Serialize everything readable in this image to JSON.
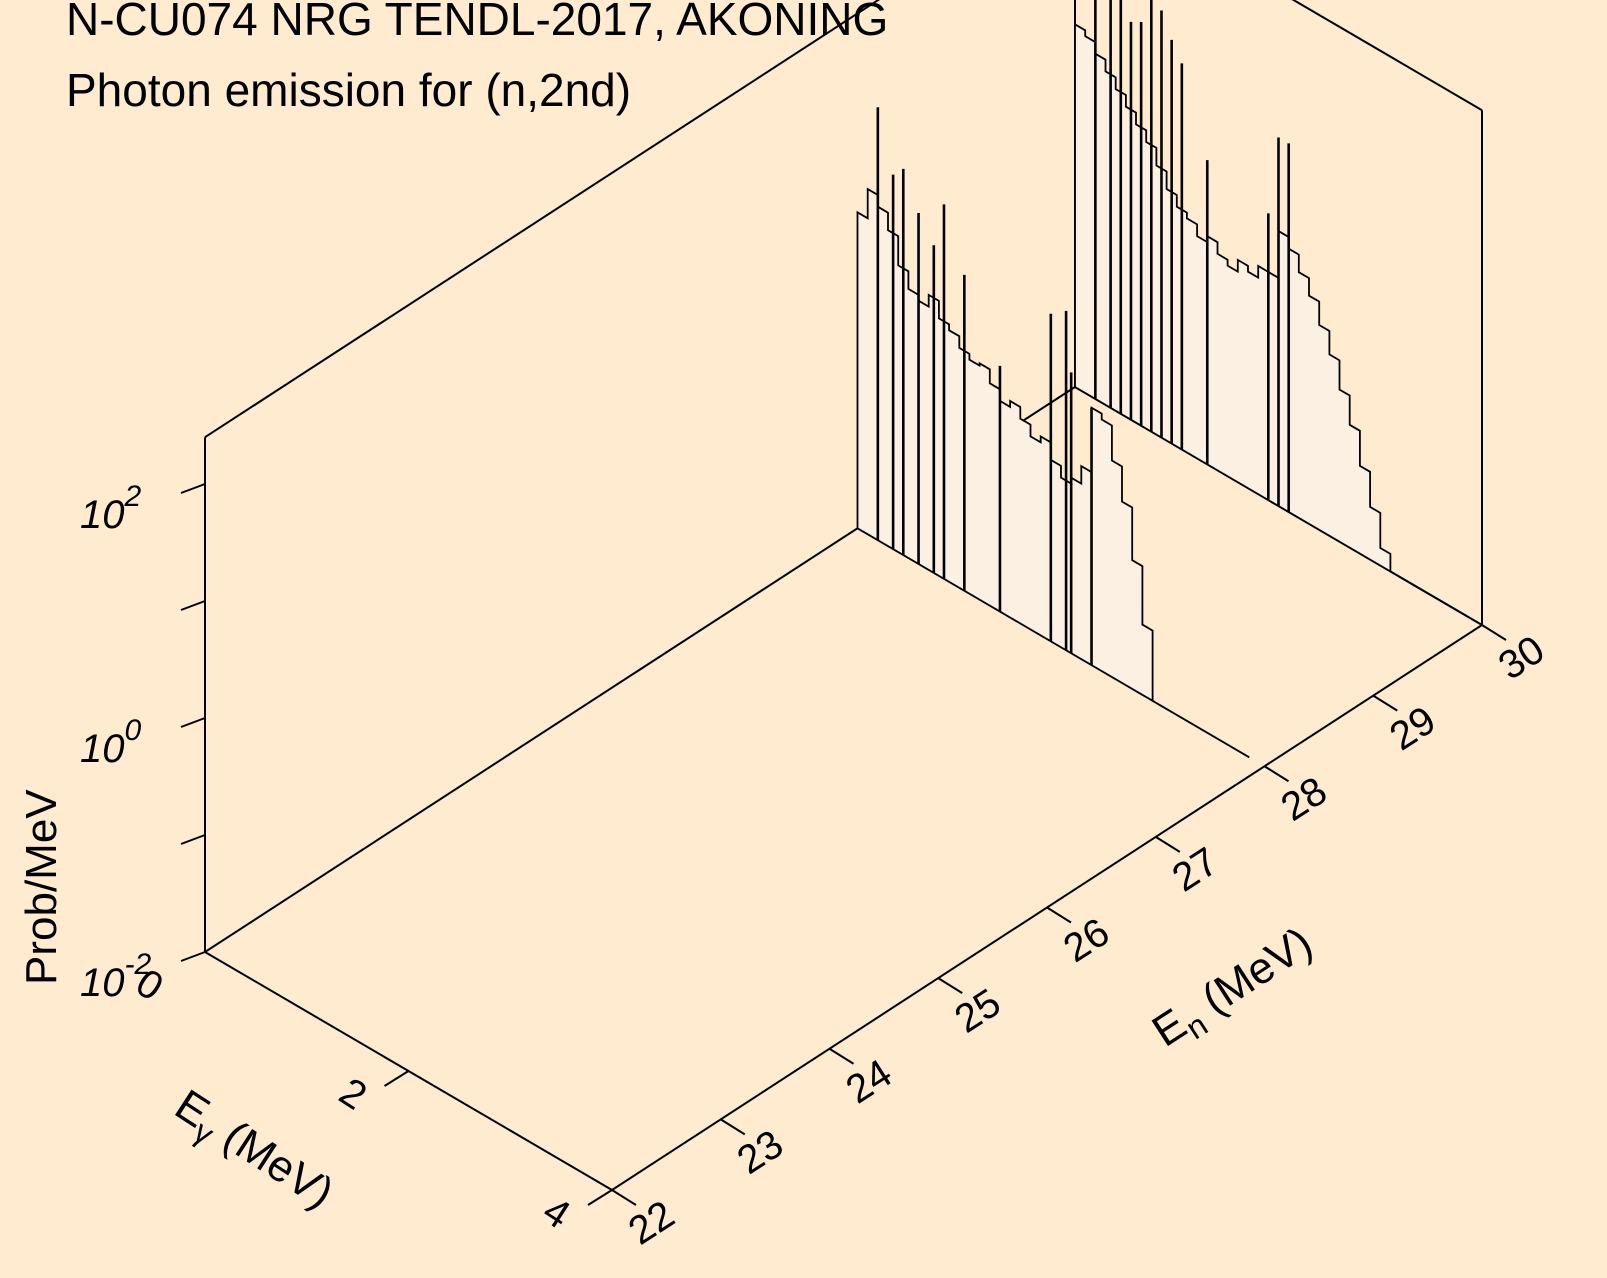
{
  "title": {
    "line1": "N-CU074 NRG TENDL-2017, AKONING",
    "line2": "Photon emission for (n,2nd)"
  },
  "colors": {
    "background": "#FEEBD0",
    "spectrum_fill": "#FBF0E2",
    "line": "#000000"
  },
  "chart_data": {
    "type": "area",
    "projection": "3d",
    "z_scale": "log",
    "xlabel": {
      "base": "E",
      "sub": "n",
      "unit": " (MeV)"
    },
    "ylabel": {
      "base": "E",
      "sub": "γ",
      "unit": " (MeV)"
    },
    "zlabel": "Prob/MeV",
    "xlim": [
      22,
      30
    ],
    "ylim": [
      0,
      4
    ],
    "zlim_exponent": [
      -2,
      2.4
    ],
    "x_ticks": [
      "22",
      "23",
      "24",
      "25",
      "26",
      "27",
      "28",
      "29",
      "30"
    ],
    "y_ticks": [
      "0",
      "2",
      "4"
    ],
    "z_ticks": [
      {
        "base": "10",
        "exp": "-2"
      },
      {
        "base": "10",
        "exp": "0"
      },
      {
        "base": "10",
        "exp": "2"
      }
    ],
    "z_minor_tick_exponents": [
      -1,
      1
    ],
    "series": [
      {
        "en": 28,
        "continuum": [
          [
            0.0,
            0.7
          ],
          [
            0.1,
            0.95
          ],
          [
            0.2,
            0.85
          ],
          [
            0.3,
            0.7
          ],
          [
            0.4,
            0.45
          ],
          [
            0.5,
            0.3
          ],
          [
            0.6,
            0.25
          ],
          [
            0.7,
            0.35
          ],
          [
            0.8,
            0.2
          ],
          [
            0.9,
            0.15
          ],
          [
            1.0,
            0.05
          ],
          [
            1.1,
            0.0
          ],
          [
            1.2,
            0.02
          ],
          [
            1.3,
            -0.1
          ],
          [
            1.4,
            -0.2
          ],
          [
            1.5,
            -0.15
          ],
          [
            1.6,
            -0.25
          ],
          [
            1.7,
            -0.35
          ],
          [
            1.8,
            -0.3
          ],
          [
            1.9,
            -0.45
          ],
          [
            2.0,
            -0.55
          ],
          [
            2.1,
            -0.5
          ],
          [
            2.2,
            -0.35
          ],
          [
            2.3,
            0.2
          ],
          [
            2.4,
            0.15
          ],
          [
            2.5,
            -0.15
          ],
          [
            2.6,
            -0.45
          ],
          [
            2.7,
            -0.9
          ],
          [
            2.8,
            -1.4
          ],
          [
            2.9,
            -2.0
          ],
          [
            3.0,
            -2.0
          ]
        ],
        "lines": [
          [
            0.2,
            1.7
          ],
          [
            0.35,
            1.2
          ],
          [
            0.45,
            1.3
          ],
          [
            0.6,
            1.0
          ],
          [
            0.75,
            0.8
          ],
          [
            0.85,
            1.2
          ],
          [
            1.05,
            0.7
          ],
          [
            1.4,
            0.1
          ],
          [
            1.9,
            0.8
          ],
          [
            2.05,
            0.9
          ],
          [
            2.1,
            0.4
          ],
          [
            2.3,
            0.2
          ]
        ]
      },
      {
        "en": 30,
        "continuum": [
          [
            0.0,
            1.1
          ],
          [
            0.1,
            1.05
          ],
          [
            0.2,
            0.95
          ],
          [
            0.3,
            0.85
          ],
          [
            0.4,
            0.75
          ],
          [
            0.5,
            0.65
          ],
          [
            0.6,
            0.55
          ],
          [
            0.7,
            0.45
          ],
          [
            0.8,
            0.3
          ],
          [
            0.9,
            0.15
          ],
          [
            1.0,
            0.05
          ],
          [
            1.1,
            0.0
          ],
          [
            1.2,
            -0.1
          ],
          [
            1.3,
            -0.05
          ],
          [
            1.4,
            -0.15
          ],
          [
            1.5,
            -0.2
          ],
          [
            1.6,
            -0.1
          ],
          [
            1.7,
            -0.15
          ],
          [
            1.8,
            -0.05
          ],
          [
            1.9,
            -0.05
          ],
          [
            2.0,
            0.35
          ],
          [
            2.1,
            0.25
          ],
          [
            2.2,
            0.1
          ],
          [
            2.3,
            -0.05
          ],
          [
            2.4,
            -0.25
          ],
          [
            2.5,
            -0.45
          ],
          [
            2.6,
            -0.7
          ],
          [
            2.7,
            -0.95
          ],
          [
            2.8,
            -1.25
          ],
          [
            2.9,
            -1.55
          ],
          [
            3.0,
            -1.85
          ],
          [
            3.1,
            -2.0
          ]
        ],
        "lines": [
          [
            0.2,
            2.2
          ],
          [
            0.35,
            1.9
          ],
          [
            0.45,
            1.7
          ],
          [
            0.55,
            1.4
          ],
          [
            0.65,
            1.45
          ],
          [
            0.75,
            1.8
          ],
          [
            0.85,
            1.65
          ],
          [
            0.95,
            1.45
          ],
          [
            1.05,
            1.3
          ],
          [
            1.3,
            0.6
          ],
          [
            1.9,
            0.45
          ],
          [
            2.0,
            1.15
          ],
          [
            2.1,
            1.15
          ]
        ]
      }
    ]
  }
}
